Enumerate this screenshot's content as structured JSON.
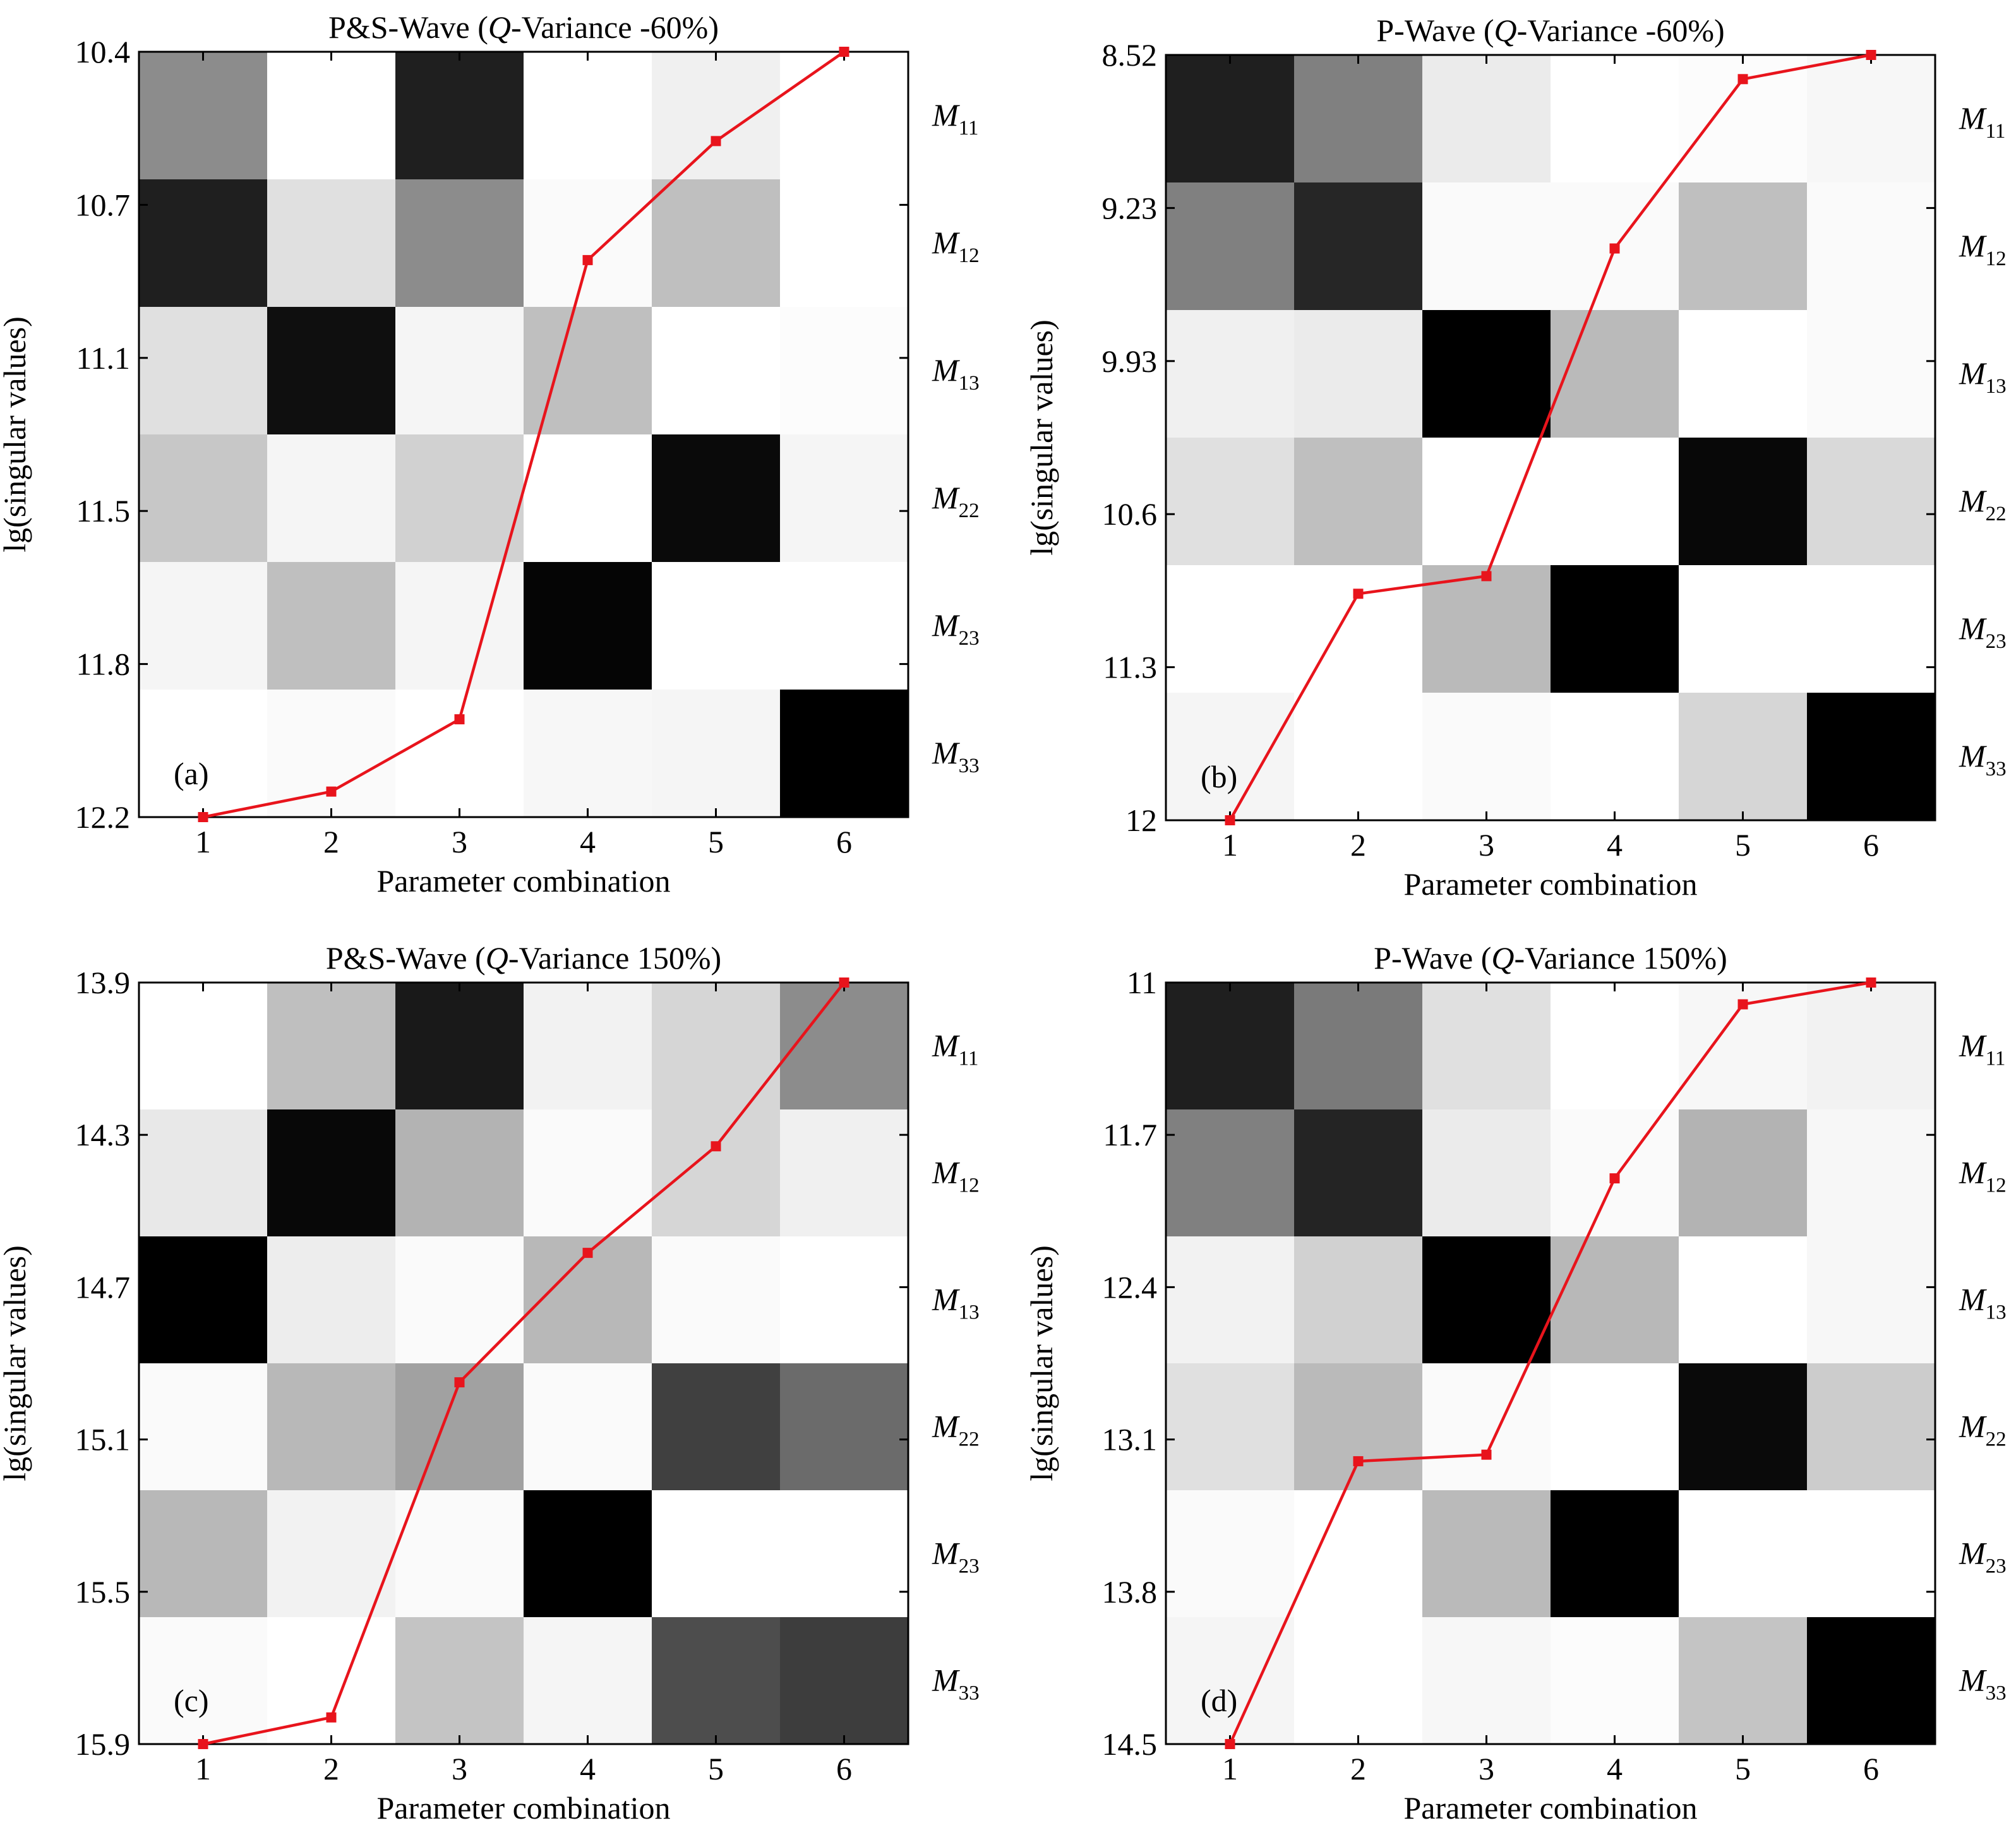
{
  "chart_data": [
    {
      "type": "heatmap",
      "panel_label": "(a)",
      "title": {
        "prefix": "P&S-Wave (",
        "emph": "Q",
        "suffix": "-Variance -60%)"
      },
      "xlabel": "Parameter combination",
      "ylabel": "lg(singular values)",
      "x_ticks": [
        "1",
        "2",
        "3",
        "4",
        "5",
        "6"
      ],
      "y_ticks": [
        "10.4",
        "10.7",
        "11.1",
        "11.5",
        "11.8",
        "12.2"
      ],
      "ylim": [
        10.4,
        12.2
      ],
      "y_inverted": true,
      "rows": [
        {
          "base": "M",
          "sub": "11"
        },
        {
          "base": "M",
          "sub": "12"
        },
        {
          "base": "M",
          "sub": "13"
        },
        {
          "base": "M",
          "sub": "22"
        },
        {
          "base": "M",
          "sub": "23"
        },
        {
          "base": "M",
          "sub": "33"
        }
      ],
      "cell_intensity": [
        [
          0.45,
          0.0,
          0.88,
          0.0,
          0.06,
          0.0
        ],
        [
          0.88,
          0.12,
          0.45,
          0.02,
          0.25,
          0.0
        ],
        [
          0.12,
          0.94,
          0.04,
          0.25,
          0.0,
          0.01
        ],
        [
          0.22,
          0.04,
          0.18,
          0.0,
          0.96,
          0.04
        ],
        [
          0.04,
          0.25,
          0.04,
          0.98,
          0.0,
          0.0
        ],
        [
          0.0,
          0.02,
          0.0,
          0.03,
          0.04,
          1.0
        ]
      ],
      "series": {
        "name": "lg(singular values)",
        "color": "#e8141c",
        "x": [
          1,
          2,
          3,
          4,
          5,
          6
        ],
        "y": [
          12.2,
          12.14,
          11.97,
          10.89,
          10.61,
          10.4
        ]
      }
    },
    {
      "type": "heatmap",
      "panel_label": "(b)",
      "title": {
        "prefix": "P-Wave (",
        "emph": "Q",
        "suffix": "-Variance -60%)"
      },
      "xlabel": "Parameter combination",
      "ylabel": "lg(singular values)",
      "x_ticks": [
        "1",
        "2",
        "3",
        "4",
        "5",
        "6"
      ],
      "y_ticks": [
        "8.52",
        "9.23",
        "9.93",
        "10.6",
        "11.3",
        "12"
      ],
      "ylim": [
        8.52,
        12
      ],
      "y_inverted": true,
      "rows": [
        {
          "base": "M",
          "sub": "11"
        },
        {
          "base": "M",
          "sub": "12"
        },
        {
          "base": "M",
          "sub": "13"
        },
        {
          "base": "M",
          "sub": "22"
        },
        {
          "base": "M",
          "sub": "23"
        },
        {
          "base": "M",
          "sub": "33"
        }
      ],
      "cell_intensity": [
        [
          0.88,
          0.5,
          0.08,
          0.0,
          0.01,
          0.03
        ],
        [
          0.5,
          0.85,
          0.02,
          0.02,
          0.25,
          0.02
        ],
        [
          0.06,
          0.08,
          1.0,
          0.27,
          0.0,
          0.02
        ],
        [
          0.12,
          0.25,
          0.0,
          0.0,
          0.97,
          0.15
        ],
        [
          0.0,
          0.0,
          0.27,
          1.0,
          0.0,
          0.0
        ],
        [
          0.04,
          0.0,
          0.02,
          0.0,
          0.16,
          1.0
        ]
      ],
      "series": {
        "name": "lg(singular values)",
        "color": "#e8141c",
        "x": [
          1,
          2,
          3,
          4,
          5,
          6
        ],
        "y": [
          12,
          10.97,
          10.89,
          9.4,
          8.63,
          8.52
        ]
      }
    },
    {
      "type": "heatmap",
      "panel_label": "(c)",
      "title": {
        "prefix": "P&S-Wave (",
        "emph": "Q",
        "suffix": "-Variance 150%)"
      },
      "xlabel": "Parameter combination",
      "ylabel": "lg(singular values)",
      "x_ticks": [
        "1",
        "2",
        "3",
        "4",
        "5",
        "6"
      ],
      "y_ticks": [
        "13.9",
        "14.3",
        "14.7",
        "15.1",
        "15.5",
        "15.9"
      ],
      "ylim": [
        13.9,
        15.9
      ],
      "y_inverted": true,
      "rows": [
        {
          "base": "M",
          "sub": "11"
        },
        {
          "base": "M",
          "sub": "12"
        },
        {
          "base": "M",
          "sub": "13"
        },
        {
          "base": "M",
          "sub": "22"
        },
        {
          "base": "M",
          "sub": "23"
        },
        {
          "base": "M",
          "sub": "33"
        }
      ],
      "cell_intensity": [
        [
          0.0,
          0.25,
          0.9,
          0.05,
          0.16,
          0.45
        ],
        [
          0.09,
          0.97,
          0.3,
          0.02,
          0.16,
          0.06
        ],
        [
          1.0,
          0.07,
          0.02,
          0.28,
          0.02,
          0.0
        ],
        [
          0.02,
          0.28,
          0.37,
          0.02,
          0.75,
          0.58
        ],
        [
          0.28,
          0.05,
          0.02,
          1.0,
          0.0,
          0.0
        ],
        [
          0.02,
          0.0,
          0.23,
          0.04,
          0.7,
          0.76
        ]
      ],
      "series": {
        "name": "lg(singular values)",
        "color": "#e8141c",
        "x": [
          1,
          2,
          3,
          4,
          5,
          6
        ],
        "y": [
          15.9,
          15.83,
          14.95,
          14.61,
          14.33,
          13.9
        ]
      }
    },
    {
      "type": "heatmap",
      "panel_label": "(d)",
      "title": {
        "prefix": "P-Wave (",
        "emph": "Q",
        "suffix": "-Variance 150%)"
      },
      "xlabel": "Parameter combination",
      "ylabel": "lg(singular values)",
      "x_ticks": [
        "1",
        "2",
        "3",
        "4",
        "5",
        "6"
      ],
      "y_ticks": [
        "11",
        "11.7",
        "12.4",
        "13.1",
        "13.8",
        "14.5"
      ],
      "ylim": [
        11,
        14.5
      ],
      "y_inverted": true,
      "rows": [
        {
          "base": "M",
          "sub": "11"
        },
        {
          "base": "M",
          "sub": "12"
        },
        {
          "base": "M",
          "sub": "13"
        },
        {
          "base": "M",
          "sub": "22"
        },
        {
          "base": "M",
          "sub": "23"
        },
        {
          "base": "M",
          "sub": "33"
        }
      ],
      "cell_intensity": [
        [
          0.88,
          0.52,
          0.12,
          0.0,
          0.03,
          0.05
        ],
        [
          0.5,
          0.86,
          0.08,
          0.02,
          0.3,
          0.03
        ],
        [
          0.05,
          0.18,
          1.0,
          0.28,
          0.0,
          0.03
        ],
        [
          0.12,
          0.27,
          0.02,
          0.0,
          0.96,
          0.2
        ],
        [
          0.02,
          0.0,
          0.27,
          1.0,
          0.0,
          0.0
        ],
        [
          0.04,
          0.0,
          0.03,
          0.01,
          0.23,
          1.0
        ]
      ],
      "series": {
        "name": "lg(singular values)",
        "color": "#e8141c",
        "x": [
          1,
          2,
          3,
          4,
          5,
          6
        ],
        "y": [
          14.5,
          13.2,
          13.17,
          11.9,
          11.1,
          11
        ]
      }
    }
  ]
}
